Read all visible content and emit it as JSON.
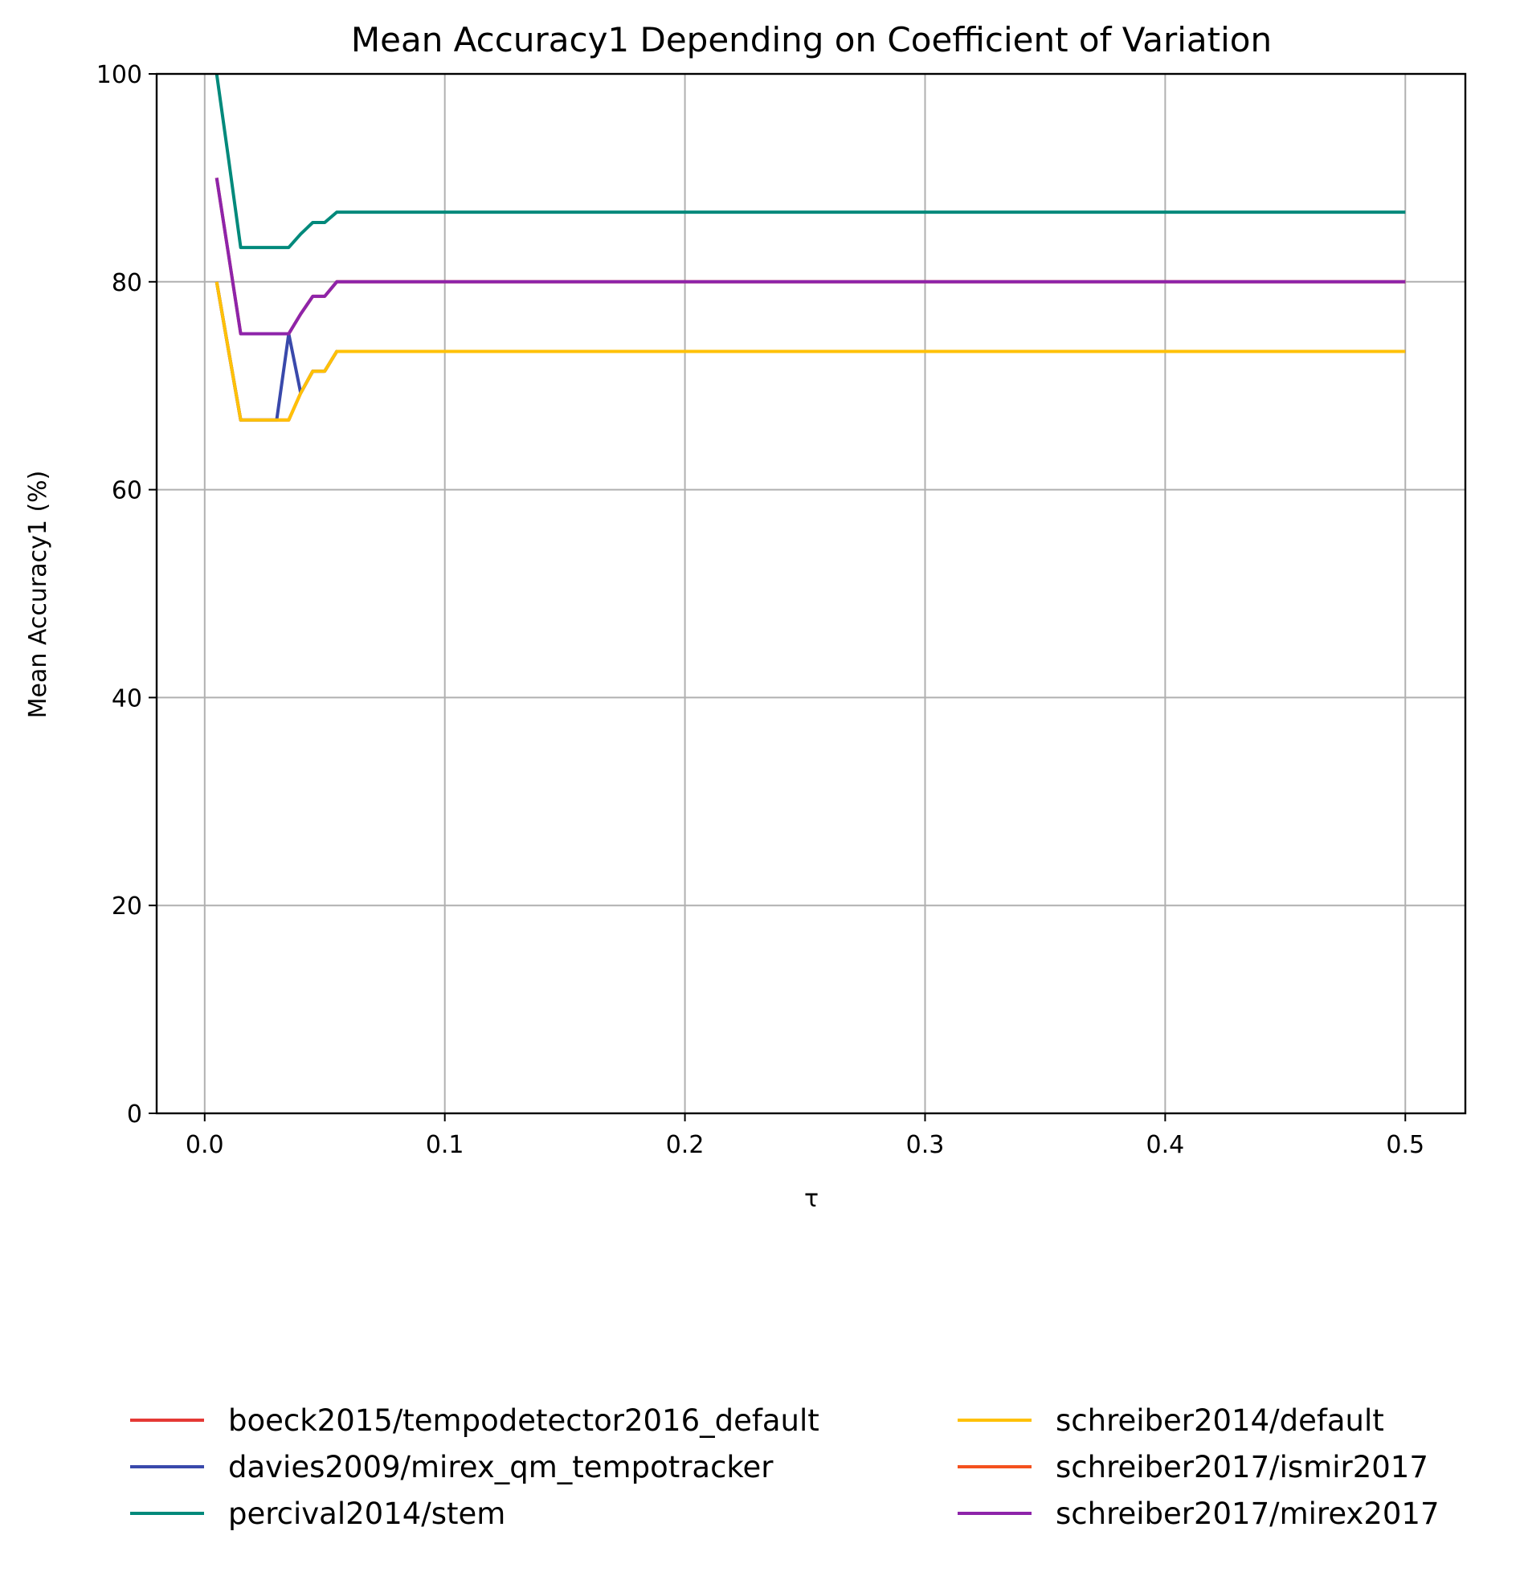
{
  "chart_data": {
    "type": "line",
    "title": "Mean Accuracy1 Depending on Coefficient of Variation",
    "xlabel": "τ",
    "ylabel": "Mean Accuracy1 (%)",
    "xlim": [
      -0.02,
      0.525
    ],
    "ylim": [
      0,
      100
    ],
    "xticks": [
      0.0,
      0.1,
      0.2,
      0.3,
      0.4,
      0.5
    ],
    "xtick_labels": [
      "0.0",
      "0.1",
      "0.2",
      "0.3",
      "0.4",
      "0.5"
    ],
    "yticks": [
      0,
      20,
      40,
      60,
      80,
      100
    ],
    "ytick_labels": [
      "0",
      "20",
      "40",
      "60",
      "80",
      "100"
    ],
    "grid": true,
    "legend_position": "below plot, two columns",
    "series": [
      {
        "name": "boeck2015/tempodetector2016_default",
        "color": "#e53935",
        "x": [
          0.005,
          0.01,
          0.015,
          0.02,
          0.025,
          0.03,
          0.035,
          0.04,
          0.045,
          0.05,
          0.055,
          0.5
        ],
        "y": [
          80,
          73.3,
          66.7,
          66.7,
          66.7,
          66.7,
          66.7,
          69.3,
          71.4,
          71.4,
          73.3,
          73.3
        ]
      },
      {
        "name": "davies2009/mirex_qm_tempotracker",
        "color": "#3949ab",
        "x": [
          0.005,
          0.01,
          0.015,
          0.02,
          0.025,
          0.03,
          0.035,
          0.04,
          0.045,
          0.05,
          0.055,
          0.5
        ],
        "y": [
          80,
          73.3,
          66.7,
          66.7,
          66.7,
          66.7,
          75,
          69.3,
          71.4,
          71.4,
          73.3,
          73.3
        ]
      },
      {
        "name": "percival2014/stem",
        "color": "#00897b",
        "x": [
          0.005,
          0.01,
          0.015,
          0.02,
          0.025,
          0.03,
          0.035,
          0.04,
          0.045,
          0.05,
          0.055,
          0.5
        ],
        "y": [
          100,
          91.7,
          83.3,
          83.3,
          83.3,
          83.3,
          83.3,
          84.6,
          85.7,
          85.7,
          86.7,
          86.7
        ]
      },
      {
        "name": "schreiber2014/default",
        "color": "#ffc107",
        "x": [
          0.005,
          0.01,
          0.015,
          0.02,
          0.025,
          0.03,
          0.035,
          0.04,
          0.045,
          0.05,
          0.055,
          0.5
        ],
        "y": [
          80,
          73.3,
          66.7,
          66.7,
          66.7,
          66.7,
          66.7,
          69.3,
          71.4,
          71.4,
          73.3,
          73.3
        ]
      },
      {
        "name": "schreiber2017/ismir2017",
        "color": "#f4511e",
        "x": [
          0.005,
          0.01,
          0.015,
          0.02,
          0.025,
          0.03,
          0.035,
          0.04,
          0.045,
          0.05,
          0.055,
          0.5
        ],
        "y": [
          90,
          82.5,
          75,
          75,
          75,
          75,
          75,
          76.9,
          78.6,
          78.6,
          80,
          80
        ]
      },
      {
        "name": "schreiber2017/mirex2017",
        "color": "#8e24aa",
        "x": [
          0.005,
          0.01,
          0.015,
          0.02,
          0.025,
          0.03,
          0.035,
          0.04,
          0.045,
          0.05,
          0.055,
          0.5
        ],
        "y": [
          90,
          82.5,
          75,
          75,
          75,
          75,
          75,
          76.9,
          78.6,
          78.6,
          80,
          80
        ]
      }
    ]
  }
}
